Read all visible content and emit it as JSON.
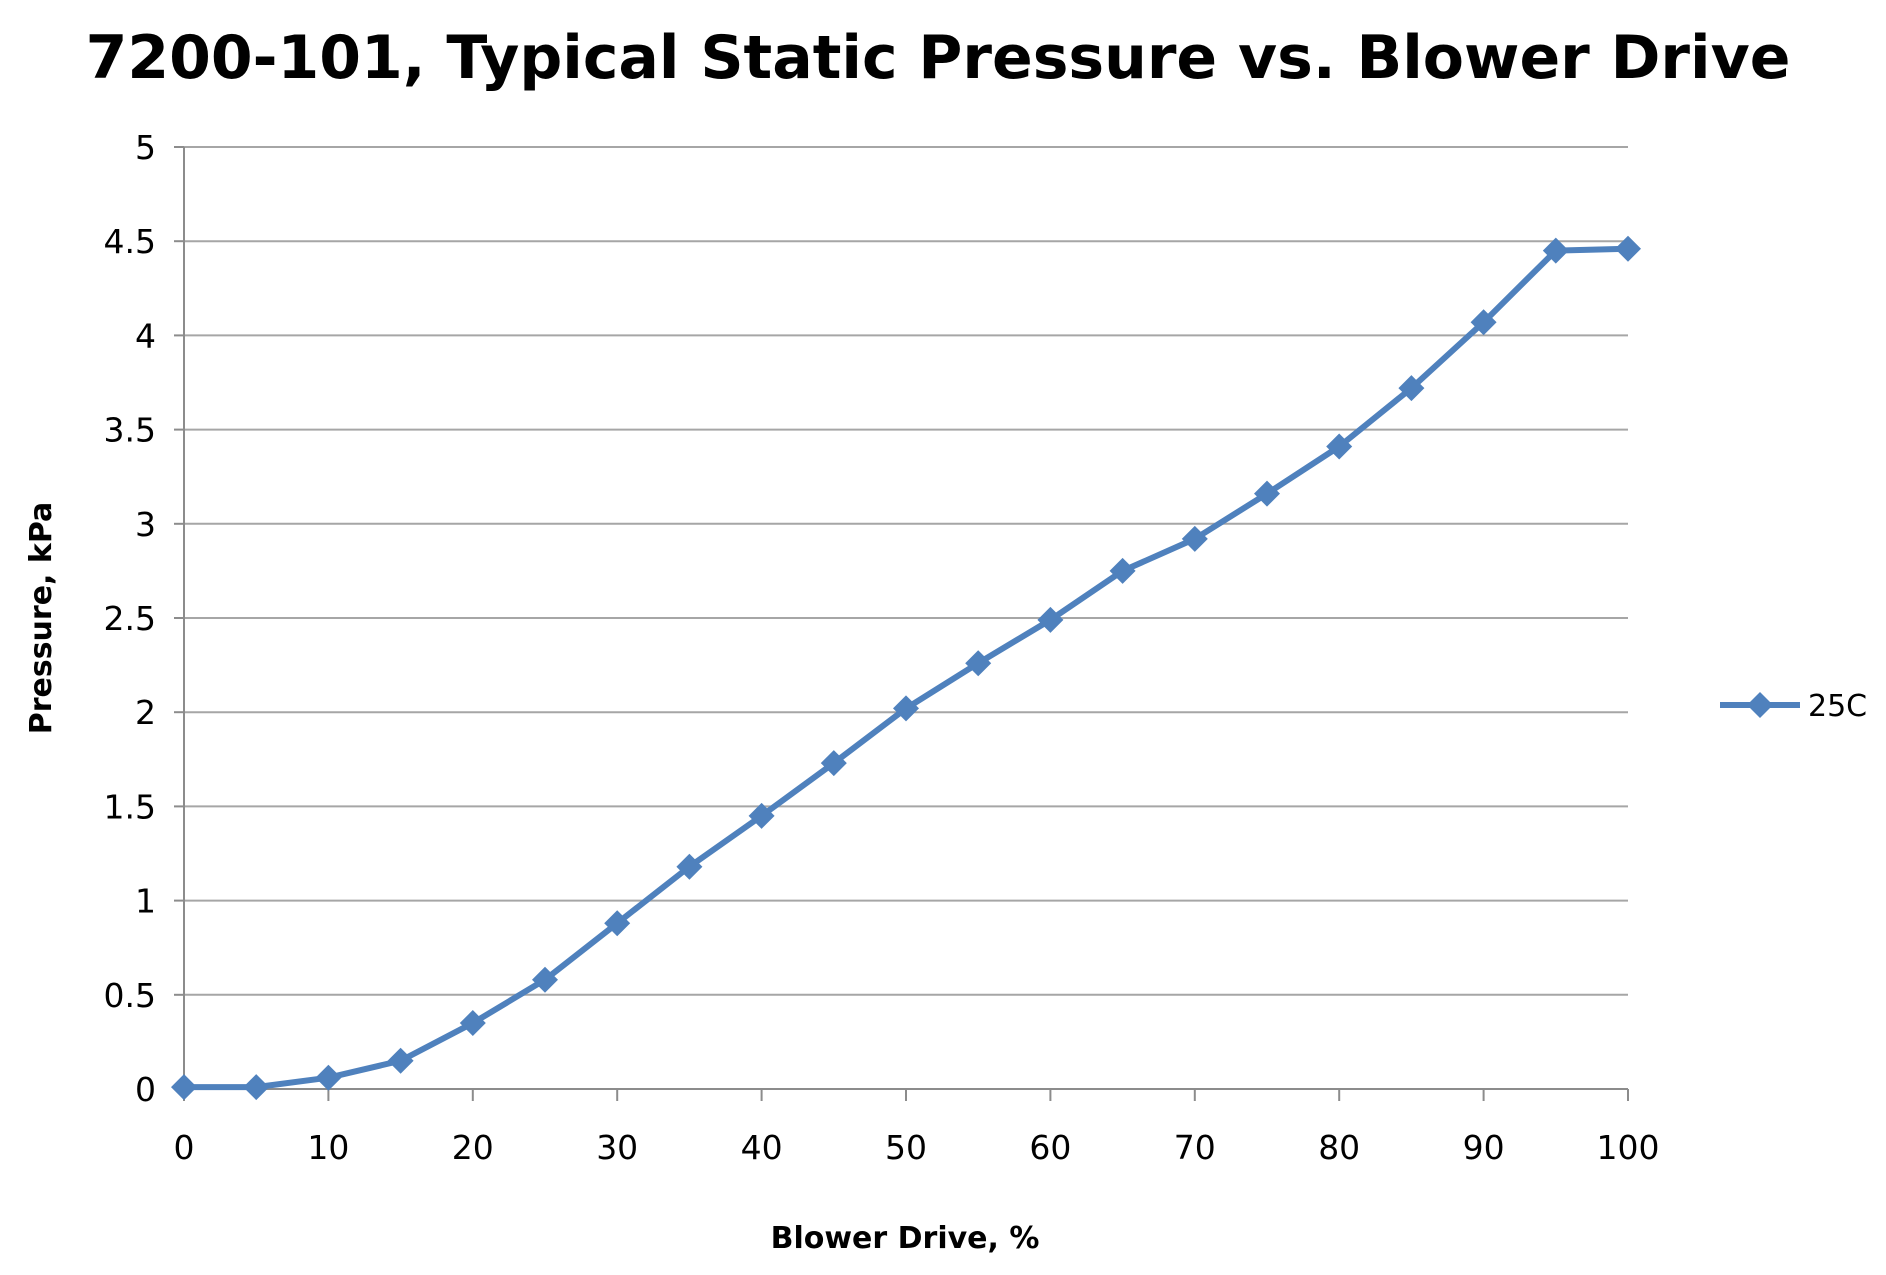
{
  "chart_data": {
    "type": "line",
    "title": "7200-101, Typical Static Pressure vs. Blower Drive",
    "xlabel": "Blower Drive, %",
    "ylabel": "Pressure, kPa",
    "xlim": [
      0,
      100
    ],
    "ylim": [
      0,
      5
    ],
    "x_ticks": [
      "0",
      "10",
      "20",
      "30",
      "40",
      "50",
      "60",
      "70",
      "80",
      "90",
      "100"
    ],
    "y_ticks": [
      "0",
      "0.5",
      "1",
      "1.5",
      "2",
      "2.5",
      "3",
      "3.5",
      "4",
      "4.5",
      "5"
    ],
    "x_tick_values": [
      0,
      10,
      20,
      30,
      40,
      50,
      60,
      70,
      80,
      90,
      100
    ],
    "y_tick_values": [
      0,
      0.5,
      1,
      1.5,
      2,
      2.5,
      3,
      3.5,
      4,
      4.5,
      5
    ],
    "grid": "horizontal",
    "legend_position": "right",
    "series": [
      {
        "name": "25C",
        "color": "#4f81bd",
        "marker": "diamond",
        "x": [
          0,
          5,
          10,
          15,
          20,
          25,
          30,
          35,
          40,
          45,
          50,
          55,
          60,
          65,
          70,
          75,
          80,
          85,
          90,
          95,
          100
        ],
        "y": [
          0.01,
          0.01,
          0.06,
          0.15,
          0.35,
          0.58,
          0.88,
          1.18,
          1.45,
          1.73,
          2.02,
          2.26,
          2.49,
          2.75,
          2.92,
          3.16,
          3.41,
          3.72,
          4.07,
          4.45,
          4.46
        ]
      }
    ]
  }
}
